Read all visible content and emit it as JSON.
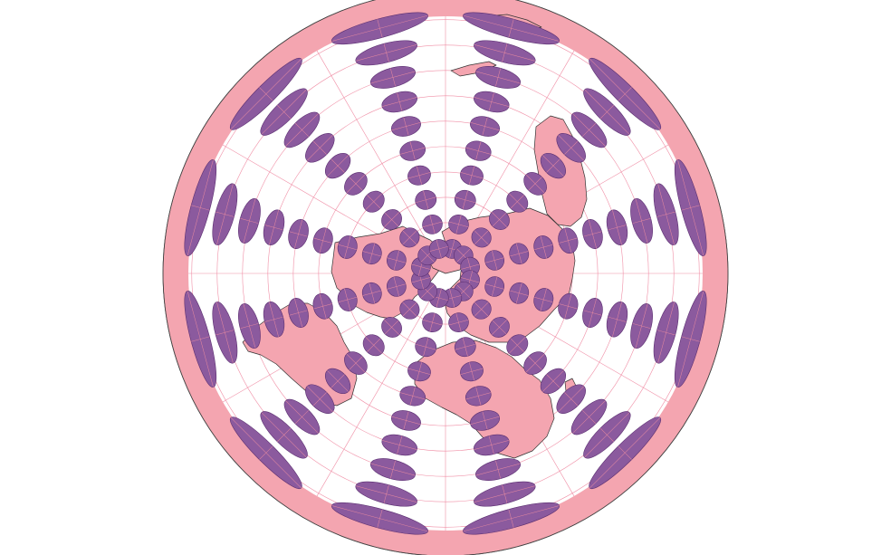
{
  "map": {
    "projection": "azimuthal-equidistant-north-polar",
    "title": "",
    "indicatrix_label": "",
    "colors": {
      "background": "#ffffff",
      "ocean": "#ffffff",
      "outer_ring": "#f4a5b0",
      "land": "#f4a5b0",
      "border": "#333333",
      "graticule": "#f08fa6",
      "indicatrix_fill": "#8b5a9e",
      "indicatrix_stroke": "#5a2e70",
      "indicatrix_axes": "#e88aa0",
      "outline": "#444444"
    },
    "graticule": {
      "parallels_deg": [
        75,
        60,
        45,
        30,
        15,
        0,
        -15,
        -30,
        -45,
        -60
      ],
      "meridian_step_deg": 30
    },
    "indicatrix": {
      "latitudes_deg": [
        75,
        60,
        45,
        30,
        15,
        0,
        -15,
        -30,
        -45,
        -60
      ],
      "longitude_step_deg": 30,
      "longitude_offset_deg": 15
    }
  }
}
